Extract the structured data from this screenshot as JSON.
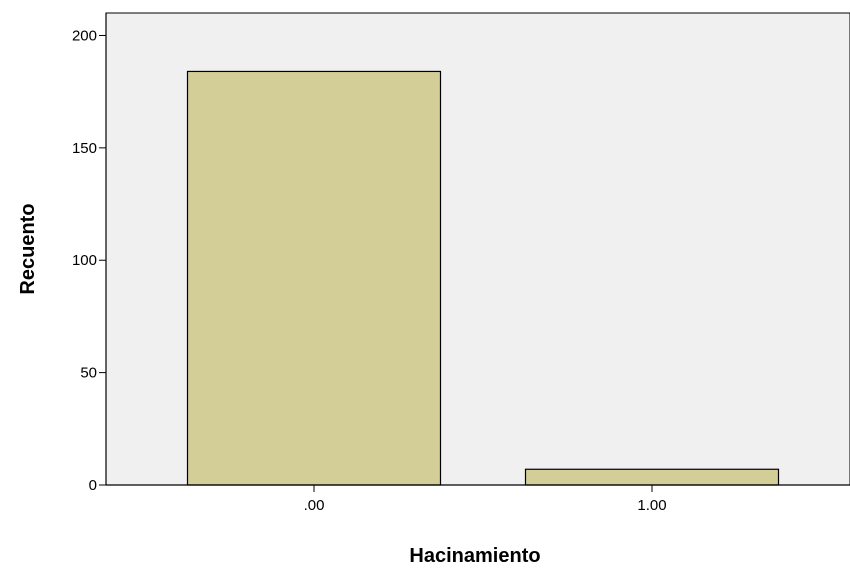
{
  "chart_data": {
    "type": "bar",
    "title": "",
    "xlabel": "Hacinamiento",
    "ylabel": "Recuento",
    "categories": [
      ".00",
      "1.00"
    ],
    "values": [
      184,
      7
    ],
    "ylim": [
      0,
      210
    ],
    "yticks": [
      0,
      50,
      100,
      150,
      200
    ],
    "ytick_labels": [
      "0",
      "50",
      "100",
      "150",
      "200"
    ],
    "grid": false,
    "legend": "none",
    "colors": {
      "plot_background": "#f0f0f0",
      "bar_fill": "#d3ce97",
      "bar_stroke": "#000000",
      "axis": "#000000"
    }
  }
}
